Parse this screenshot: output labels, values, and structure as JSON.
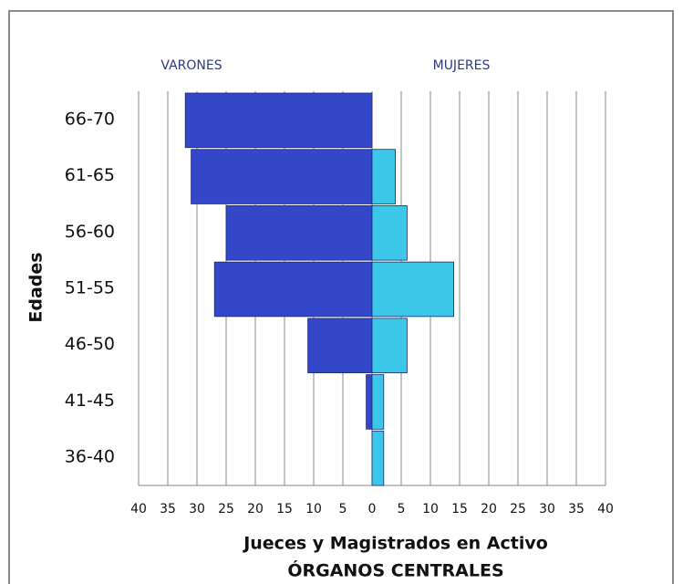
{
  "chart_data": {
    "type": "pyramid",
    "y_label": "Edades",
    "x_label": "Jueces y Magistrados   en Activo",
    "subtitle": "ÓRGANOS CENTRALES",
    "categories": [
      "66-70",
      "61-65",
      "56-60",
      "51-55",
      "46-50",
      "41-45",
      "36-40"
    ],
    "series": [
      {
        "name": "VARONES",
        "color": "#3447c8",
        "values": [
          -32,
          -31,
          -25,
          -27,
          -11,
          -1,
          0
        ]
      },
      {
        "name": "MUJERES",
        "color": "#3cc6e8",
        "values": [
          0,
          4,
          6,
          14,
          6,
          2,
          2
        ]
      }
    ],
    "xlim": [
      -40,
      40
    ],
    "xticks": [
      {
        "value": -40,
        "label": "40"
      },
      {
        "value": -35,
        "label": "35"
      },
      {
        "value": -30,
        "label": "30"
      },
      {
        "value": -25,
        "label": "25"
      },
      {
        "value": -20,
        "label": "20"
      },
      {
        "value": -15,
        "label": "15"
      },
      {
        "value": -10,
        "label": "10"
      },
      {
        "value": -5,
        "label": "5"
      },
      0,
      5,
      10,
      15,
      20,
      25,
      30,
      35,
      40
    ],
    "grid": true
  }
}
